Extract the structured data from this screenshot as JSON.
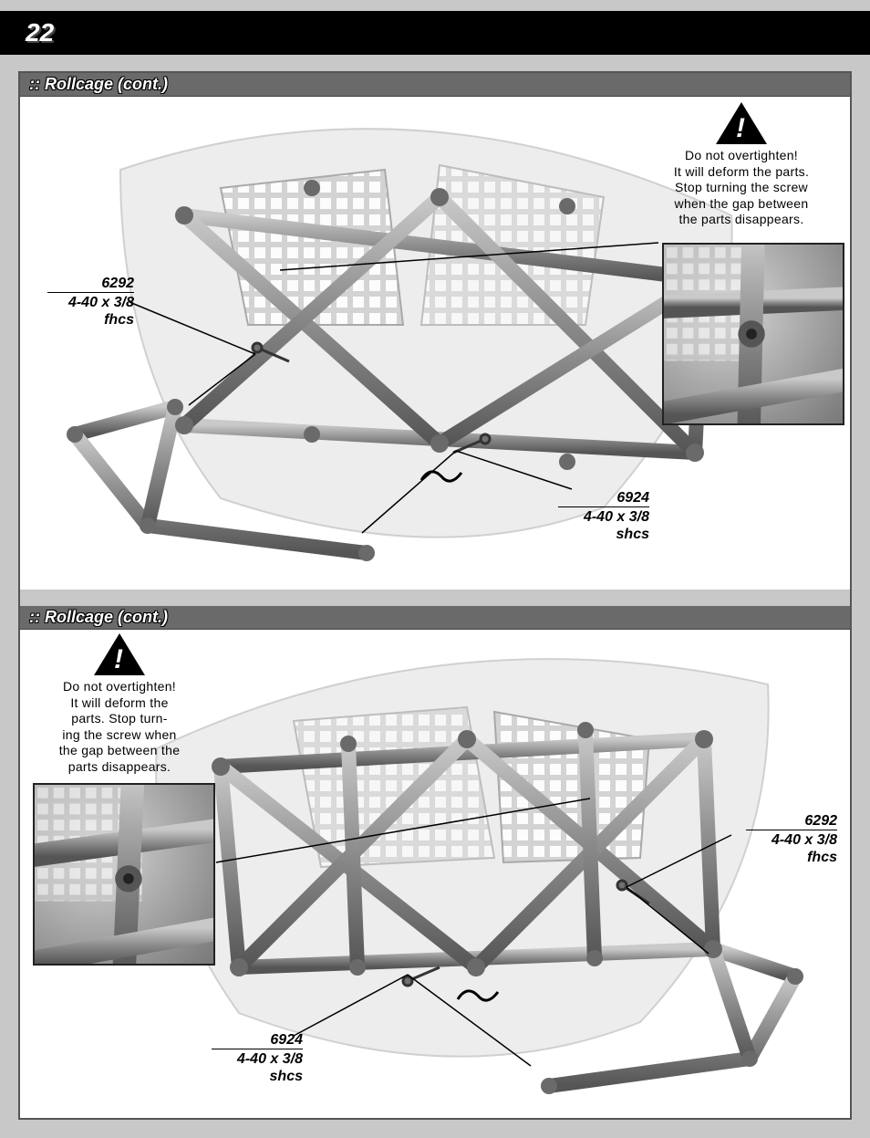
{
  "page_number": "22",
  "section_title": ":: Rollcage (cont.)",
  "warning_text_top": "Do not overtighten!\nIt will deform the parts.\nStop turning the screw\nwhen the gap between\nthe parts disappears.",
  "warning_text_bottom": "Do not overtighten!\nIt will deform the\nparts.  Stop turn-\ning the screw when\nthe gap between the\nparts disappears.",
  "callouts": {
    "top_left": {
      "partnum": "6292",
      "size": "4-40 x 3/8",
      "type": "fhcs"
    },
    "top_right": {
      "partnum": "6924",
      "size": "4-40 x 3/8",
      "type": "shcs"
    },
    "bot_right": {
      "partnum": "6292",
      "size": "4-40 x 3/8",
      "type": "fhcs"
    },
    "bot_left": {
      "partnum": "6924",
      "size": "4-40 x 3/8",
      "type": "shcs"
    }
  },
  "colors": {
    "page_bg": "#c8c8c8",
    "header_bg": "#000000",
    "section_bar": "#6a6a6a",
    "cage_tube": "#8a8a8a",
    "cage_hilite": "#c0c0c0",
    "body_shell": "#dcdcdc",
    "mesh": "#b0b0b0",
    "inset_border": "#222222"
  }
}
